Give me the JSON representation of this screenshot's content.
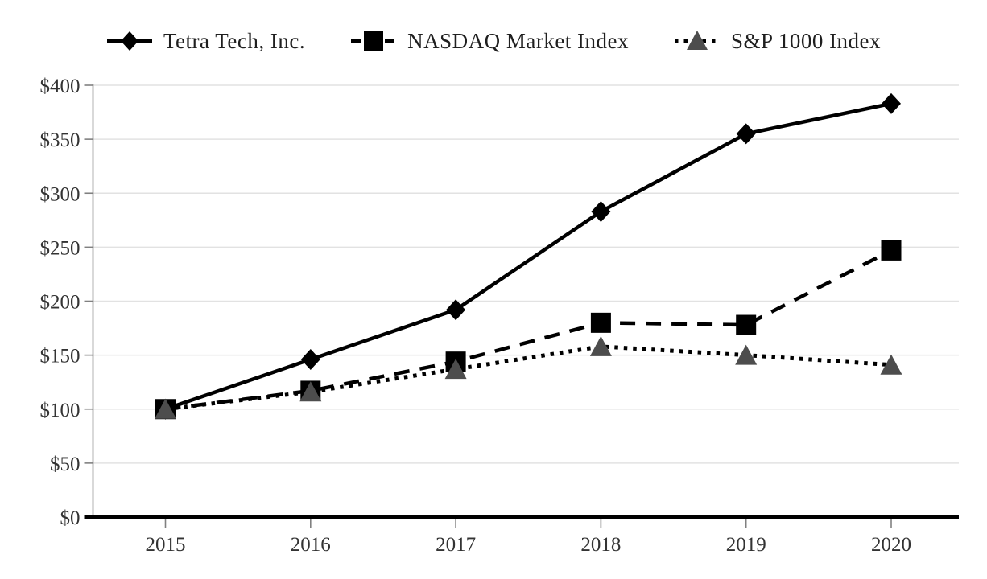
{
  "chart_data": {
    "type": "line",
    "title": "",
    "xlabel": "",
    "ylabel": "",
    "categories": [
      "2015",
      "2016",
      "2017",
      "2018",
      "2019",
      "2020"
    ],
    "series": [
      {
        "name": "Tetra Tech, Inc.",
        "values": [
          100,
          146,
          192,
          283,
          355,
          383
        ],
        "marker": "diamond",
        "line_style": "solid",
        "line_color": "#000000",
        "marker_color": "#000000"
      },
      {
        "name": "NASDAQ Market Index",
        "values": [
          100,
          117,
          144,
          180,
          178,
          247
        ],
        "marker": "square",
        "line_style": "dashed",
        "line_color": "#000000",
        "marker_color": "#000000"
      },
      {
        "name": "S&P 1000 Index",
        "values": [
          100,
          116,
          137,
          158,
          150,
          141
        ],
        "marker": "triangle",
        "line_style": "dotted",
        "line_color": "#000000",
        "marker_color": "#4d4d4d"
      }
    ],
    "ylim": [
      0,
      400
    ],
    "ytick_step": 50,
    "yticks": [
      "$0",
      "$50",
      "$100",
      "$150",
      "$200",
      "$250",
      "$300",
      "$350",
      "$400"
    ],
    "grid": true,
    "legend_position": "top",
    "colors": {
      "background": "#ffffff",
      "gridline": "#e2e2e2",
      "y_axis_line": "#808080",
      "x_axis_line": "#000000",
      "tick_mark": "#808080",
      "tick_label": "#333333",
      "legend_text": "#1f1f1f"
    }
  }
}
